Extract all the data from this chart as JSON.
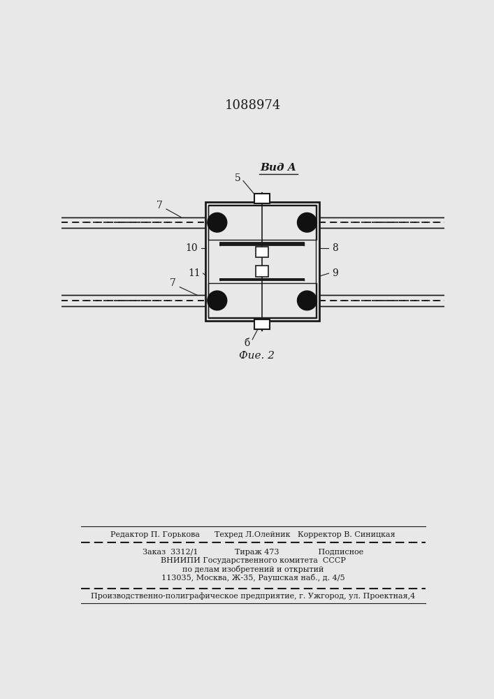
{
  "title": "1088974",
  "fig_caption": "Фие. 2",
  "view_label": "Вид A",
  "bg_color": "#e8e8e8",
  "line_color": "#1a1a1a",
  "editor_line": "Редактор П. Горькова      Техред Л.Олейник   Корректор В. Синицкая",
  "order_line": "Заказ  3312/1               Тираж 473                Подписное",
  "vnipi_line1": "ВНИИПИ Государственного комитета  СССР",
  "vnipi_line2": "по делам изобретений и открытий",
  "vnipi_line3": "113035, Москва, Ж-35, Раушская наб., д. 4/5",
  "prod_line": "Производственно-полиграфическое предприятие, г. Ужгород, ул. Проектная,4"
}
